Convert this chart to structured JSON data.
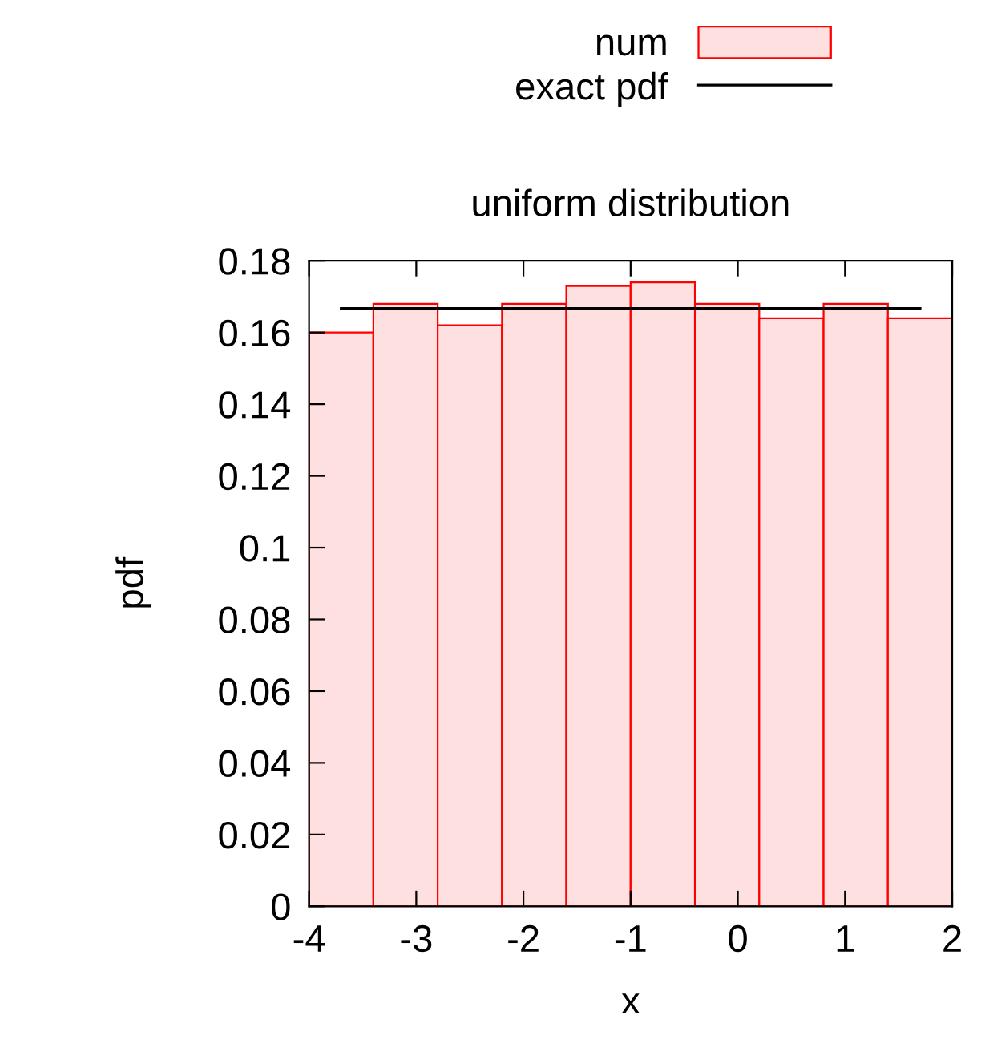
{
  "chart_data": {
    "type": "histogram",
    "title": "uniform distribution",
    "xlabel": "x",
    "ylabel": "pdf",
    "bins": [
      -4,
      -3.4,
      -2.8,
      -2.2,
      -1.6,
      -1,
      -0.4,
      0.2,
      0.8,
      1.4,
      2
    ],
    "series": [
      {
        "name": "num",
        "color": "#ffe0e0",
        "values": [
          0.16,
          0.168,
          0.162,
          0.168,
          0.173,
          0.174,
          0.168,
          0.164,
          0.168,
          0.164
        ]
      },
      {
        "name": "exact pdf",
        "type": "line",
        "color": "#000000",
        "x": [
          -3.7,
          1.7
        ],
        "values": [
          0.1667,
          0.1667
        ]
      }
    ],
    "xlim": [
      -4,
      2
    ],
    "xticks": [
      -4,
      -3,
      -2,
      -1,
      0,
      1,
      2
    ],
    "ylim": [
      0,
      0.18
    ],
    "yticks": [
      0,
      0.02,
      0.04,
      0.06,
      0.08,
      0.1,
      0.12,
      0.14,
      0.16,
      0.18
    ],
    "legend": "top right",
    "grid": false
  }
}
